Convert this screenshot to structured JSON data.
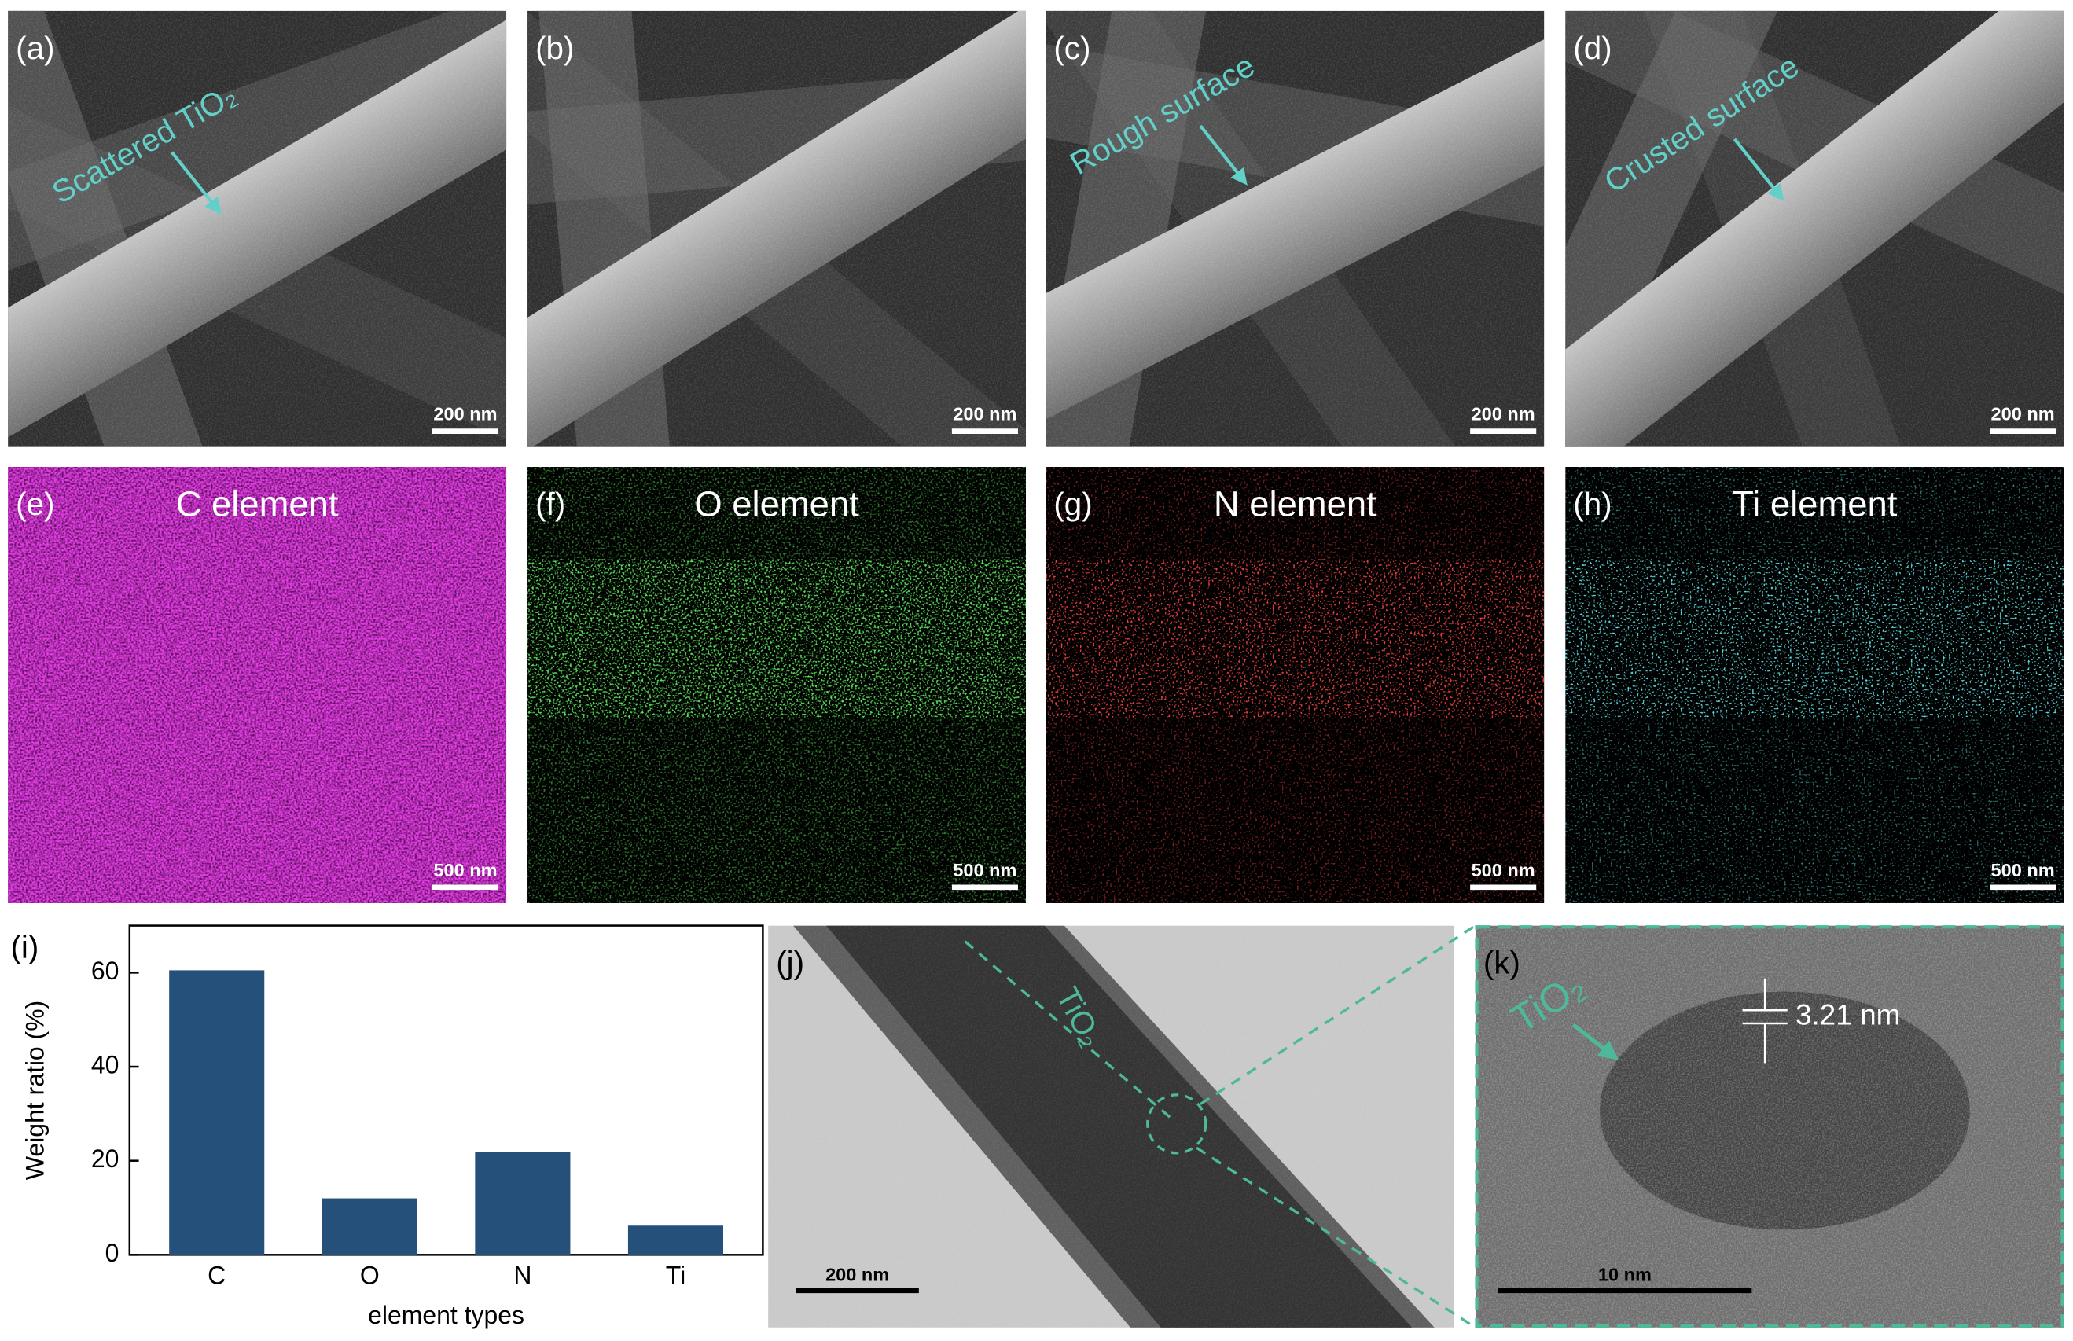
{
  "panels": [
    {
      "label": "(a)",
      "annotation": "Scattered TiO₂",
      "scale_bar": "200 nm"
    },
    {
      "label": "(b)",
      "scale_bar": "200 nm"
    },
    {
      "label": "(c)",
      "annotation": "Rough surface",
      "scale_bar": "200 nm"
    },
    {
      "label": "(d)",
      "annotation": "Crusted surface",
      "scale_bar": "200 nm"
    },
    {
      "label": "(e)",
      "title": "C element",
      "scale_bar": "500 nm"
    },
    {
      "label": "(f)",
      "title": "O element",
      "scale_bar": "500 nm"
    },
    {
      "label": "(g)",
      "title": "N element",
      "scale_bar": "500 nm"
    },
    {
      "label": "(h)",
      "title": "Ti element",
      "scale_bar": "500 nm"
    },
    {
      "label": "(j)",
      "annotation": "TiO₂",
      "scale_bar": "200 nm"
    },
    {
      "label": "(k)",
      "annotation": "TiO₂",
      "spacing": "3.21 nm",
      "scale_bar": "10 nm"
    }
  ],
  "chart_data": {
    "type": "bar",
    "label": "(i)",
    "x_label": "element types",
    "y_label": "Weight ratio (%)",
    "categories": [
      "C",
      "O",
      "N",
      "Ti"
    ],
    "values": [
      60.5,
      12,
      21.8,
      6.2
    ],
    "color": "#24507a",
    "ylim": [
      0,
      70
    ],
    "yticks": [
      0,
      20,
      40,
      60
    ]
  }
}
